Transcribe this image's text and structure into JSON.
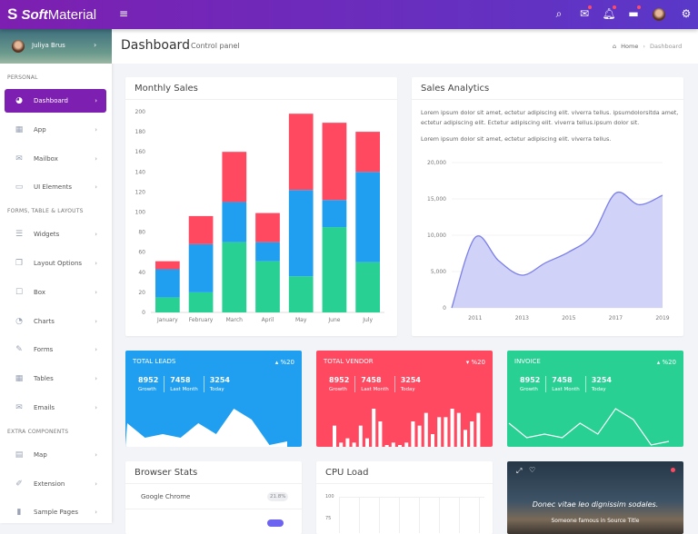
{
  "header": {
    "brand_bold": "Soft",
    "brand_rest": "Material",
    "icons": [
      "menu-icon",
      "search-icon",
      "mail-icon",
      "bell-icon",
      "chat-icon",
      "avatar",
      "gear-icon"
    ]
  },
  "sidebar": {
    "user": "Juliya Brus",
    "sections": [
      {
        "title": "PERSONAL",
        "items": [
          {
            "label": "Dashboard",
            "icon": "dashboard-icon",
            "active": true
          },
          {
            "label": "App",
            "icon": "apps-icon"
          },
          {
            "label": "Mailbox",
            "icon": "mail-icon"
          },
          {
            "label": "UI Elements",
            "icon": "laptop-icon"
          }
        ]
      },
      {
        "title": "FORMS, TABLE & LAYOUTS",
        "items": [
          {
            "label": "Widgets",
            "icon": "list-icon"
          },
          {
            "label": "Layout Options",
            "icon": "copy-icon"
          },
          {
            "label": "Box",
            "icon": "square-icon"
          },
          {
            "label": "Charts",
            "icon": "pie-chart-icon"
          },
          {
            "label": "Forms",
            "icon": "edit-icon"
          },
          {
            "label": "Tables",
            "icon": "table-icon"
          },
          {
            "label": "Emails",
            "icon": "envelope-open-icon"
          }
        ]
      },
      {
        "title": "EXTRA COMPONENTS",
        "items": [
          {
            "label": "Map",
            "icon": "map-icon"
          },
          {
            "label": "Extension",
            "icon": "plug-icon"
          },
          {
            "label": "Sample Pages",
            "icon": "file-icon"
          }
        ]
      }
    ]
  },
  "page": {
    "title": "Dashboard",
    "subtitle": "Control panel",
    "breadcrumb": [
      "Home",
      "Dashboard"
    ]
  },
  "monthly": {
    "title": "Monthly Sales"
  },
  "analytics": {
    "title": "Sales Analytics",
    "p1": "Lorem ipsum dolor sit amet, ectetur adipiscing elit. viverra tellus. ipsumdolorsitda amet, ectetur adipiscing elit. Ectetur adipiscing elit. viverra tellus.ipsum dolor sit.",
    "p2": "Lorem ipsum dolor sit amet, ectetur adipiscing elit. viverra tellus."
  },
  "stats": [
    {
      "title": "TOTAL LEADS",
      "trend": "up",
      "percent": "%20",
      "color": "#209ff0",
      "values": [
        {
          "n": "8952",
          "l": "Growth"
        },
        {
          "n": "7458",
          "l": "Last Month"
        },
        {
          "n": "3254",
          "l": "Today"
        }
      ],
      "spark": [
        6,
        2,
        3,
        2,
        6,
        3,
        10,
        7,
        0,
        1
      ]
    },
    {
      "title": "TOTAL VENDOR",
      "trend": "down",
      "percent": "%20",
      "color": "#ff4961",
      "values": [
        {
          "n": "8952",
          "l": "Growth"
        },
        {
          "n": "7458",
          "l": "Last Month"
        },
        {
          "n": "3254",
          "l": "Today"
        }
      ],
      "spark": [
        5,
        1,
        2,
        1,
        5,
        2,
        9,
        6,
        0,
        1,
        0,
        1,
        6,
        5,
        8,
        3,
        7,
        7,
        9,
        8,
        4,
        6,
        8
      ]
    },
    {
      "title": "INVOICE",
      "trend": "up",
      "percent": "%20",
      "color": "#28d094",
      "values": [
        {
          "n": "8952",
          "l": "Growth"
        },
        {
          "n": "7458",
          "l": "Last Month"
        },
        {
          "n": "3254",
          "l": "Today"
        }
      ],
      "spark": [
        6,
        2,
        3,
        2,
        6,
        3,
        10,
        7,
        0,
        1
      ]
    }
  ],
  "browser": {
    "title": "Browser Stats",
    "items": [
      {
        "name": "Google Chrome",
        "value": "21.8%"
      }
    ]
  },
  "cpu": {
    "title": "CPU Load",
    "ticks": [
      "100",
      "75"
    ]
  },
  "photo": {
    "caption": "Donec vitae leo dignissim sodales.",
    "sub": "Someone famous in Source Title"
  },
  "chart_data": [
    {
      "type": "bar",
      "stacked": true,
      "categories": [
        "January",
        "February",
        "March",
        "April",
        "May",
        "June",
        "July"
      ],
      "ylim": [
        0,
        200
      ],
      "yticks": [
        0,
        20,
        40,
        60,
        80,
        100,
        120,
        140,
        160,
        180,
        200
      ],
      "series": [
        {
          "color": "#28d094",
          "values": [
            15,
            20,
            70,
            51,
            36,
            85,
            50
          ]
        },
        {
          "color": "#209ff0",
          "values": [
            28,
            48,
            40,
            19,
            86,
            27,
            90
          ]
        },
        {
          "color": "#ff4961",
          "values": [
            8,
            28,
            50,
            29,
            76,
            77,
            40
          ]
        }
      ]
    },
    {
      "type": "area",
      "x": [
        2010,
        2011,
        2012,
        2013,
        2014,
        2015,
        2016,
        2017,
        2018,
        2019
      ],
      "y": [
        0,
        9700,
        6500,
        4500,
        6200,
        7700,
        10000,
        15800,
        14200,
        15500
      ],
      "xticks": [
        "2011",
        "2013",
        "2015",
        "2017",
        "2019"
      ],
      "yticks": [
        "0",
        "5,000",
        "10,000",
        "15,000",
        "20,000"
      ],
      "ylim": [
        0,
        20000
      ],
      "color": "#7b7fe8"
    }
  ]
}
